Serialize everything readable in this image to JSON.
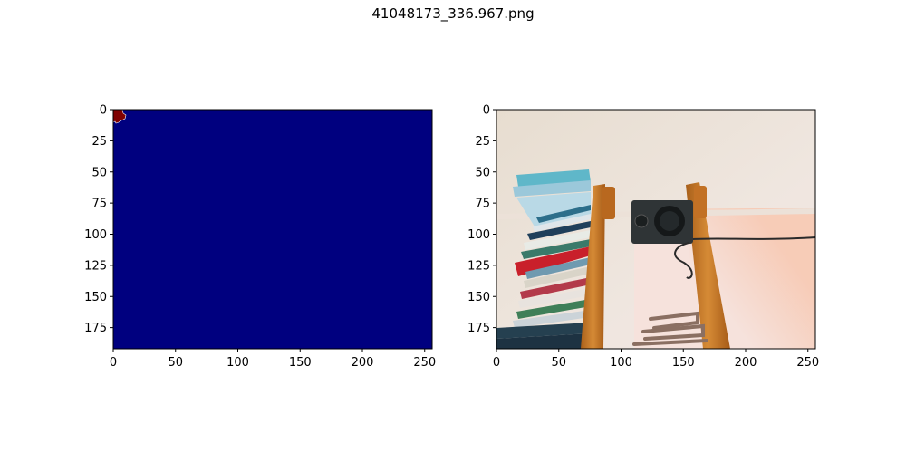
{
  "figure": {
    "title": "41048173_336.967.png"
  },
  "colors": {
    "mask_background": "#00007f",
    "mask_blob": "#7f0000",
    "axis": "#000000"
  },
  "chart_data": [
    {
      "type": "heatmap",
      "title": "",
      "xlabel": "",
      "ylabel": "",
      "xlim": [
        0,
        256
      ],
      "ylim": [
        192,
        0
      ],
      "xticks": [
        0,
        50,
        100,
        150,
        200,
        250
      ],
      "yticks": [
        0,
        25,
        50,
        75,
        100,
        125,
        150,
        175
      ],
      "grid": false,
      "content": "segmentation mask: uniform background class with a single small region at the top-left corner",
      "regions": [
        {
          "label": "background",
          "color": "#00007f"
        },
        {
          "label": "object",
          "color": "#7f0000",
          "x_range": [
            0,
            9
          ],
          "y_range": [
            0,
            11
          ]
        }
      ]
    },
    {
      "type": "image",
      "title": "",
      "xlabel": "",
      "ylabel": "",
      "xlim": [
        0,
        256
      ],
      "ylim": [
        192,
        0
      ],
      "xticks": [
        0,
        50,
        100,
        150,
        200,
        250
      ],
      "yticks": [
        0,
        25,
        50,
        75,
        100,
        125,
        150,
        175
      ],
      "grid": false,
      "content": "photo: wall-mounted wooden shelf holding a row of books, a black speaker with a cable, and metal hooks"
    }
  ]
}
